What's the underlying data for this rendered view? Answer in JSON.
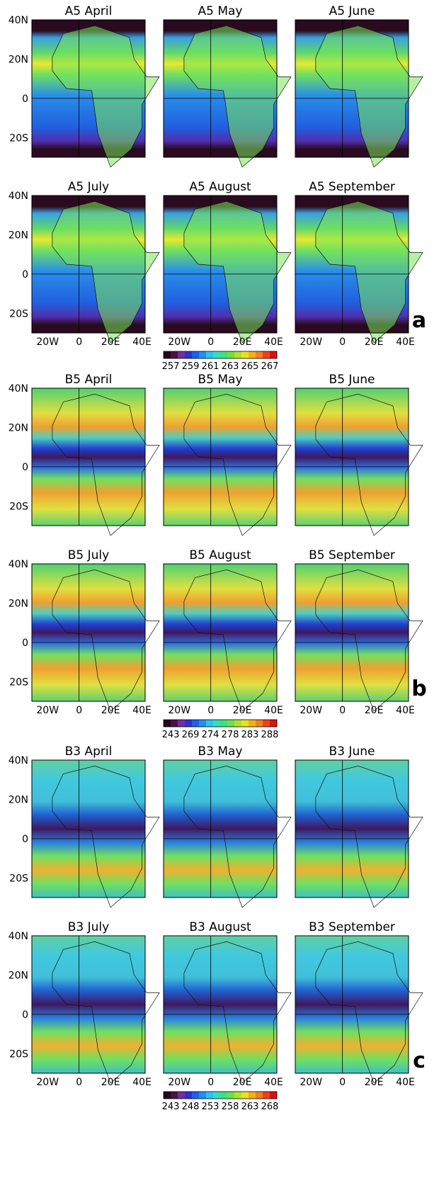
{
  "figure": {
    "groups": [
      {
        "letter": "a",
        "panels": [
          "A5 April",
          "A5 May",
          "A5 June",
          "A5 July",
          "A5 August",
          "A5 September"
        ],
        "lat_labels": [
          "40N",
          "20N",
          "0",
          "20S"
        ],
        "lon_labels": [
          "20W",
          "0",
          "20E",
          "40E"
        ],
        "colorbar_ticks": [
          257,
          259,
          261,
          263,
          265,
          267
        ]
      },
      {
        "letter": "b",
        "panels": [
          "B5 April",
          "B5 May",
          "B5 June",
          "B5 July",
          "B5 August",
          "B5 September"
        ],
        "lat_labels": [
          "40N",
          "20N",
          "0",
          "20S"
        ],
        "lon_labels": [
          "20W",
          "0",
          "20E",
          "40E"
        ],
        "colorbar_ticks": [
          243,
          269,
          274,
          278,
          283,
          288
        ]
      },
      {
        "letter": "c",
        "panels": [
          "B3 April",
          "B3 May",
          "B3 June",
          "B3 July",
          "B3 August",
          "B3 September"
        ],
        "lat_labels": [
          "40N",
          "20N",
          "0",
          "20S"
        ],
        "lon_labels": [
          "20W",
          "0",
          "20E",
          "40E"
        ],
        "colorbar_ticks": [
          243,
          248,
          253,
          258,
          263,
          268
        ]
      }
    ]
  }
}
